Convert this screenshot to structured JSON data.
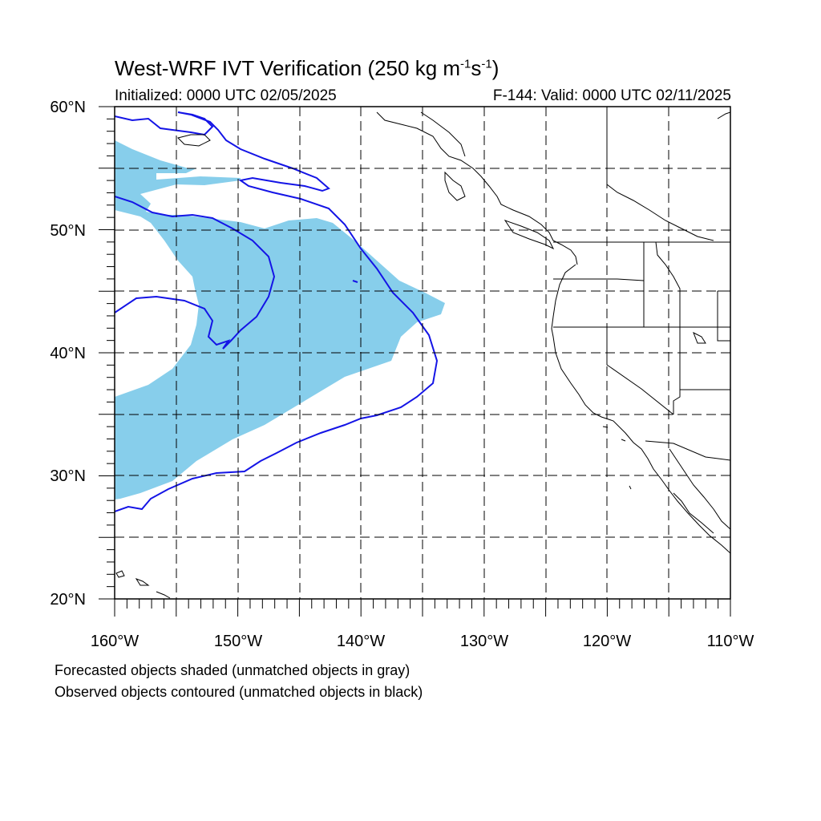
{
  "title": {
    "main": "West-WRF IVT Verification (250 kg m",
    "sup1": "-1",
    "mid": "s",
    "sup2": "-1",
    "end": ")"
  },
  "subtitle_left": "Initialized: 0000 UTC 02/05/2025",
  "subtitle_right": "F-144: Valid: 0000 UTC 02/11/2025",
  "footnote_1": "Forecasted objects shaded (unmatched objects in gray)",
  "footnote_2": "Observed objects contoured (unmatched objects in black)",
  "map": {
    "lon_range": [
      -160,
      -110
    ],
    "lat_range": [
      20,
      60
    ],
    "x_labels": [
      "160°W",
      "150°W",
      "140°W",
      "130°W",
      "120°W",
      "110°W"
    ],
    "y_labels": [
      "20°N",
      "30°N",
      "40°N",
      "50°N",
      "60°N"
    ],
    "gridlines": true,
    "forecast_fill_color": "#87ceeb",
    "observed_contour_color": "#1414e6",
    "coastline_color": "#000000"
  }
}
